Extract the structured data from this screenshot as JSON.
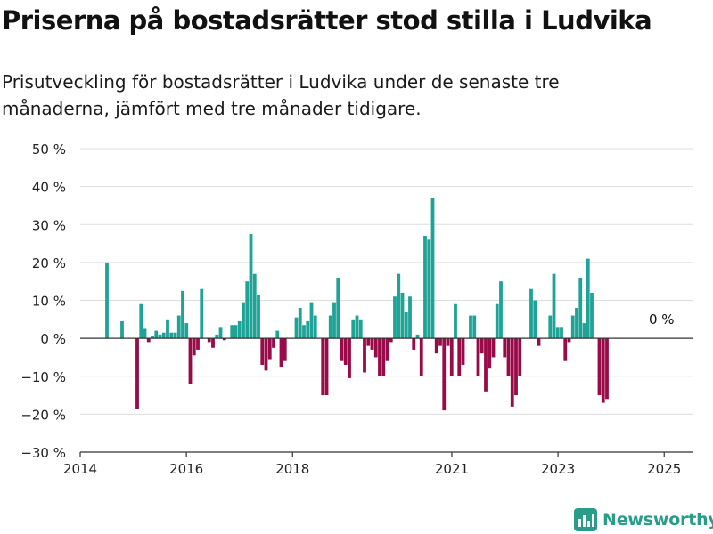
{
  "title": "Priserna på bostadsrätter stod stilla i Ludvika",
  "subtitle": "Prisutveckling för bostadsrätter i Ludvika under de senaste tre månaderna, jämfört med tre månader tidigare.",
  "brand": {
    "label": "Newsworthy",
    "color": "#2a9c8a",
    "icon": "newsworthy-bar-icon"
  },
  "colors": {
    "positive": "#1fa396",
    "negative": "#990a48",
    "grid": "#dddddd",
    "axis": "#333333",
    "text": "#222222"
  },
  "chart_data": {
    "type": "bar",
    "ylabel": "",
    "xlabel": "",
    "y_unit": "%",
    "ylim": [
      -30,
      50
    ],
    "yticks": [
      -30,
      -20,
      -10,
      0,
      10,
      20,
      30,
      40,
      50
    ],
    "ytick_labels": [
      "−30 %",
      "−20 %",
      "−10 %",
      "0 %",
      "10 %",
      "20 %",
      "30 %",
      "40 %",
      "50 %"
    ],
    "xlim": [
      2014.0,
      2025.55
    ],
    "xticks": [
      2014,
      2016,
      2018,
      2021,
      2023,
      2025
    ],
    "xtick_labels": [
      "2014",
      "2016",
      "2018",
      "2021",
      "2023",
      "2025"
    ],
    "grid": true,
    "annotation": "0 %",
    "series": [
      {
        "values": [
          20,
          null,
          null,
          null,
          4.5,
          null,
          null,
          null,
          -18.5,
          9,
          2.5,
          -1,
          0.5,
          2,
          1,
          1.5,
          5,
          1.5,
          1.5,
          6,
          12.5,
          4,
          -12,
          -4.5,
          -3,
          13,
          null,
          -1,
          -2.5,
          1,
          3,
          -0.5,
          null,
          3.5,
          3.5,
          4.5,
          9.5,
          15,
          27.5,
          17,
          11.5,
          -7,
          -8.5,
          -5.5,
          -2.5,
          2,
          -7.5,
          -6,
          null,
          null,
          5.5,
          8,
          3.5,
          4.5,
          9.5,
          6,
          0,
          -15,
          -15,
          6,
          9.5,
          16,
          -6,
          -7,
          -10.5,
          5,
          6,
          5,
          -9,
          -2,
          -3,
          -5,
          -10,
          -10,
          -6,
          -1,
          11,
          17,
          12,
          7,
          11,
          -3,
          1,
          -10,
          27,
          26,
          37,
          -4,
          -2,
          -19,
          -2,
          -10,
          9,
          -10,
          -7,
          null,
          6,
          6,
          -10,
          -4,
          -14,
          -8,
          -5,
          9,
          15,
          -5,
          -10,
          -18,
          -15,
          -10,
          null,
          null,
          13,
          10,
          -2,
          null,
          null,
          6,
          17,
          3,
          3,
          -6,
          -1,
          6,
          8,
          16,
          4,
          21,
          12,
          0,
          -15,
          -17,
          -16
        ]
      }
    ]
  }
}
